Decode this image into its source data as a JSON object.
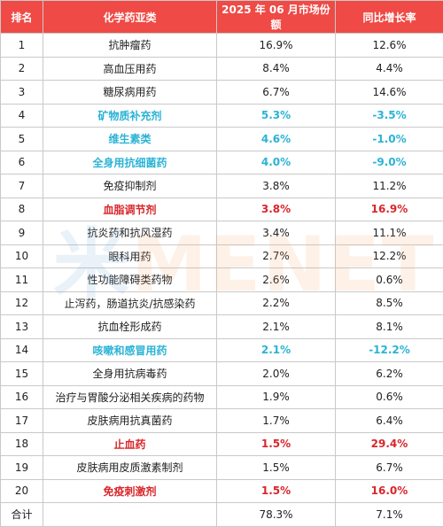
{
  "table": {
    "headers": [
      "排名",
      "化学药亚类",
      "2025 年 06 月市场份额",
      "同比增长率"
    ],
    "rows": [
      {
        "rank": "1",
        "name": "抗肿瘤药",
        "share": "16.9%",
        "growth": "12.6%",
        "highlight": ""
      },
      {
        "rank": "2",
        "name": "高血压用药",
        "share": "8.4%",
        "growth": "4.4%",
        "highlight": ""
      },
      {
        "rank": "3",
        "name": "糖尿病用药",
        "share": "6.7%",
        "growth": "14.6%",
        "highlight": ""
      },
      {
        "rank": "4",
        "name": "矿物质补充剂",
        "share": "5.3%",
        "growth": "-3.5%",
        "highlight": "blue"
      },
      {
        "rank": "5",
        "name": "维生素类",
        "share": "4.6%",
        "growth": "-1.0%",
        "highlight": "blue"
      },
      {
        "rank": "6",
        "name": "全身用抗细菌药",
        "share": "4.0%",
        "growth": "-9.0%",
        "highlight": "blue"
      },
      {
        "rank": "7",
        "name": "免疫抑制剂",
        "share": "3.8%",
        "growth": "11.2%",
        "highlight": ""
      },
      {
        "rank": "8",
        "name": "血脂调节剂",
        "share": "3.8%",
        "growth": "16.9%",
        "highlight": "red"
      },
      {
        "rank": "9",
        "name": "抗炎药和抗风湿药",
        "share": "3.4%",
        "growth": "11.1%",
        "highlight": ""
      },
      {
        "rank": "10",
        "name": "眼科用药",
        "share": "2.7%",
        "growth": "12.2%",
        "highlight": ""
      },
      {
        "rank": "11",
        "name": "性功能障碍类药物",
        "share": "2.6%",
        "growth": "0.6%",
        "highlight": ""
      },
      {
        "rank": "12",
        "name": "止泻药，肠道抗炎/抗感染药",
        "share": "2.2%",
        "growth": "8.5%",
        "highlight": ""
      },
      {
        "rank": "13",
        "name": "抗血栓形成药",
        "share": "2.1%",
        "growth": "8.1%",
        "highlight": ""
      },
      {
        "rank": "14",
        "name": "咳嗽和感冒用药",
        "share": "2.1%",
        "growth": "-12.2%",
        "highlight": "blue"
      },
      {
        "rank": "15",
        "name": "全身用抗病毒药",
        "share": "2.0%",
        "growth": "6.2%",
        "highlight": ""
      },
      {
        "rank": "16",
        "name": "治疗与胃酸分泌相关疾病的药物",
        "share": "1.9%",
        "growth": "0.6%",
        "highlight": ""
      },
      {
        "rank": "17",
        "name": "皮肤病用抗真菌药",
        "share": "1.7%",
        "growth": "6.4%",
        "highlight": ""
      },
      {
        "rank": "18",
        "name": "止血药",
        "share": "1.5%",
        "growth": "29.4%",
        "highlight": "red"
      },
      {
        "rank": "19",
        "name": "皮肤病用皮质激素制剂",
        "share": "1.5%",
        "growth": "6.7%",
        "highlight": ""
      },
      {
        "rank": "20",
        "name": "免疫刺激剂",
        "share": "1.5%",
        "growth": "16.0%",
        "highlight": "red"
      }
    ],
    "total": {
      "label": "合计",
      "share": "78.3%",
      "growth": "7.1%"
    }
  },
  "watermark": {
    "cn": "米",
    "en": "MENET"
  },
  "colors": {
    "header_bg": "#ef4a45",
    "highlight_blue": "#2bb3d6",
    "highlight_red": "#d9262b"
  }
}
